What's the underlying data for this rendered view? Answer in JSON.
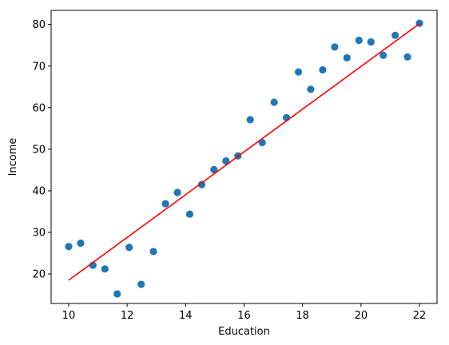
{
  "chart_data": {
    "type": "scatter",
    "title": "",
    "xlabel": "Education",
    "ylabel": "Income",
    "xlim": [
      9.4,
      22.6
    ],
    "ylim": [
      12.9,
      83.4
    ],
    "xticks": [
      10,
      12,
      14,
      16,
      18,
      20,
      22
    ],
    "yticks": [
      20,
      30,
      40,
      50,
      60,
      70,
      80
    ],
    "grid": false,
    "legend": "none",
    "series": [
      {
        "kind": "scatter",
        "color": "#1f77b4",
        "points": [
          [
            10.0,
            26.6
          ],
          [
            10.41,
            27.4
          ],
          [
            10.83,
            22.1
          ],
          [
            11.24,
            21.2
          ],
          [
            11.66,
            15.2
          ],
          [
            12.07,
            26.4
          ],
          [
            12.48,
            17.5
          ],
          [
            12.9,
            25.4
          ],
          [
            13.31,
            36.9
          ],
          [
            13.72,
            39.6
          ],
          [
            14.14,
            34.4
          ],
          [
            14.55,
            41.5
          ],
          [
            14.97,
            45.1
          ],
          [
            15.38,
            47.2
          ],
          [
            15.79,
            48.4
          ],
          [
            16.21,
            57.1
          ],
          [
            16.62,
            51.6
          ],
          [
            17.03,
            61.3
          ],
          [
            17.45,
            57.6
          ],
          [
            17.86,
            68.6
          ],
          [
            18.28,
            64.4
          ],
          [
            18.69,
            69.1
          ],
          [
            19.1,
            74.6
          ],
          [
            19.52,
            72.0
          ],
          [
            19.93,
            76.2
          ],
          [
            20.34,
            75.8
          ],
          [
            20.76,
            72.6
          ],
          [
            21.17,
            77.4
          ],
          [
            21.59,
            72.2
          ],
          [
            22.0,
            80.3
          ]
        ]
      },
      {
        "kind": "line",
        "color": "#ff0000",
        "points": [
          [
            10.0,
            18.5
          ],
          [
            22.0,
            80.2
          ]
        ]
      }
    ]
  }
}
